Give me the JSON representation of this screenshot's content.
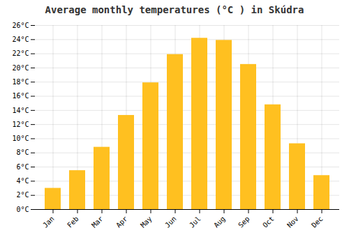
{
  "chart_data": {
    "type": "bar",
    "title": "Average monthly temperatures (°C ) in Skúdra",
    "categories": [
      "Jan",
      "Feb",
      "Mar",
      "Apr",
      "May",
      "Jun",
      "Jul",
      "Aug",
      "Sep",
      "Oct",
      "Nov",
      "Dec"
    ],
    "values": [
      3.0,
      5.5,
      8.8,
      13.3,
      17.9,
      21.9,
      24.2,
      23.9,
      20.5,
      14.8,
      9.3,
      4.8
    ],
    "color": "#FFC020",
    "ylim": [
      0,
      26
    ],
    "yticks": [
      {
        "value": 0,
        "label": "0°C"
      },
      {
        "value": 2,
        "label": "2°C"
      },
      {
        "value": 4,
        "label": "4°C"
      },
      {
        "value": 6,
        "label": "6°C"
      },
      {
        "value": 8,
        "label": "8°C"
      },
      {
        "value": 10,
        "label": "10°C"
      },
      {
        "value": 12,
        "label": "12°C"
      },
      {
        "value": 14,
        "label": "14°C"
      },
      {
        "value": 16,
        "label": "16°C"
      },
      {
        "value": 18,
        "label": "18°C"
      },
      {
        "value": 20,
        "label": "20°C"
      },
      {
        "value": 22,
        "label": "22°C"
      },
      {
        "value": 24,
        "label": "24°C"
      },
      {
        "value": 26,
        "label": "26°C"
      }
    ],
    "grid": true
  }
}
